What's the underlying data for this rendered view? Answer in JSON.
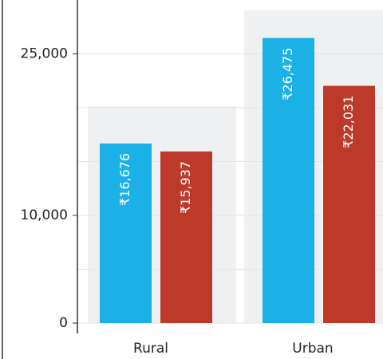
{
  "chart_data": {
    "type": "bar",
    "categories": [
      "Rural",
      "Urban"
    ],
    "series": [
      {
        "color": "#1bb1e6",
        "values": [
          16676,
          26475
        ],
        "value_labels": [
          "₹16,676",
          "₹26,475"
        ]
      },
      {
        "color": "#bd3a2b",
        "values": [
          15937,
          22031
        ],
        "value_labels": [
          "₹15,937",
          "₹22,031"
        ]
      }
    ],
    "ylim": [
      0,
      30000
    ],
    "yticks": [
      0,
      {
        "value": 10000,
        "label": "10,000"
      },
      {
        "value": 25000,
        "label": "25,000"
      }
    ],
    "minor_grid": [
      5000,
      15000,
      20000
    ],
    "grid": true
  }
}
